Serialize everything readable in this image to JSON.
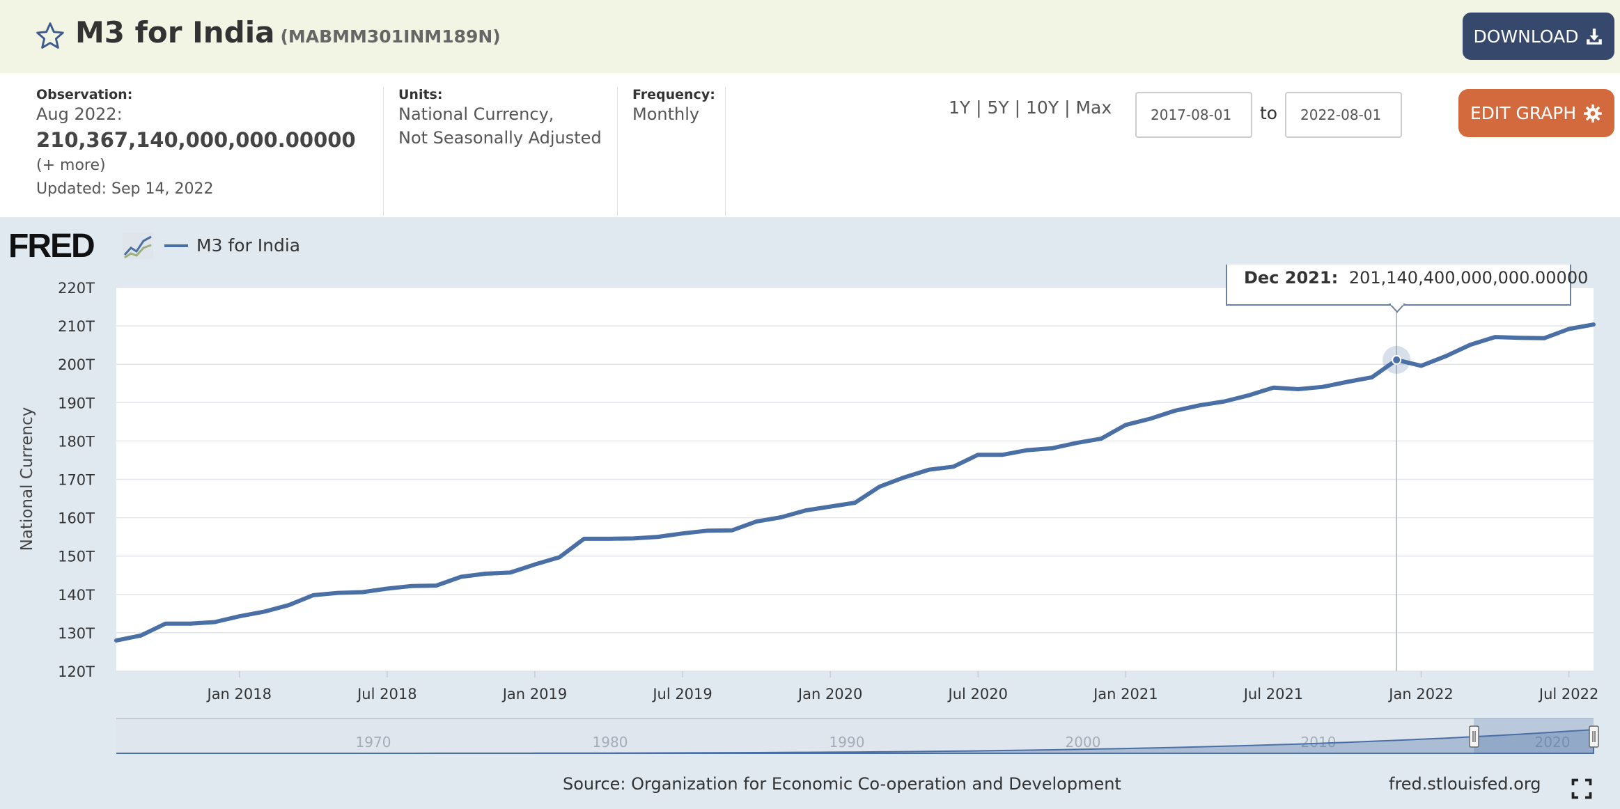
{
  "header": {
    "title": "M3 for India",
    "series_id": "(MABMM301INM189N)",
    "download_label": "DOWNLOAD"
  },
  "meta": {
    "observation_label": "Observation:",
    "observation_date": "Aug 2022:",
    "observation_value": "210,367,140,000,000.00000",
    "more_link": "(+ more)",
    "updated": "Updated: Sep 14, 2022",
    "units_label": "Units:",
    "units_line1": "National Currency,",
    "units_line2": "Not Seasonally Adjusted",
    "frequency_label": "Frequency:",
    "frequency_value": "Monthly"
  },
  "controls": {
    "range_1y": "1Y",
    "range_5y": "5Y",
    "range_10y": "10Y",
    "range_max": "Max",
    "date_from": "2017-08-01",
    "to_label": "to",
    "date_to": "2022-08-01",
    "edit_graph_label": "EDIT GRAPH"
  },
  "logo_text": "FRED",
  "tooltip": {
    "date": "Dec 2021:",
    "value": "201,140,400,000,000.00000"
  },
  "navigator": {
    "labels": [
      "1970",
      "1980",
      "1990",
      "2000",
      "2010",
      "2020"
    ]
  },
  "footer": {
    "source": "Source: Organization for Economic Co-operation and Development",
    "site": "fred.stlouisfed.org"
  },
  "colors": {
    "line": "#4a6fa5",
    "header_bg": "#f2f4e4",
    "download_bg": "#36496d",
    "edit_bg": "#d36a3e",
    "chart_bg": "#e1e9f0"
  },
  "chart_data": {
    "type": "line",
    "ylabel": "National Currency",
    "ylim": [
      120,
      220
    ],
    "y_ticks": [
      "120T",
      "130T",
      "140T",
      "150T",
      "160T",
      "170T",
      "180T",
      "190T",
      "200T",
      "210T",
      "220T"
    ],
    "x_ticks": [
      "Jan 2018",
      "Jul 2018",
      "Jan 2019",
      "Jul 2019",
      "Jan 2020",
      "Jul 2020",
      "Jan 2021",
      "Jul 2021",
      "Jan 2022",
      "Jul 2022"
    ],
    "x_range": [
      "2017-08",
      "2022-08"
    ],
    "grid": true,
    "legend": "top-left",
    "series": [
      {
        "name": "M3 for India",
        "x": [
          "2017-08",
          "2017-09",
          "2017-10",
          "2017-11",
          "2017-12",
          "2018-01",
          "2018-02",
          "2018-03",
          "2018-04",
          "2018-05",
          "2018-06",
          "2018-07",
          "2018-08",
          "2018-09",
          "2018-10",
          "2018-11",
          "2018-12",
          "2019-01",
          "2019-02",
          "2019-03",
          "2019-04",
          "2019-05",
          "2019-06",
          "2019-07",
          "2019-08",
          "2019-09",
          "2019-10",
          "2019-11",
          "2019-12",
          "2020-01",
          "2020-02",
          "2020-03",
          "2020-04",
          "2020-05",
          "2020-06",
          "2020-07",
          "2020-08",
          "2020-09",
          "2020-10",
          "2020-11",
          "2020-12",
          "2021-01",
          "2021-02",
          "2021-03",
          "2021-04",
          "2021-05",
          "2021-06",
          "2021-07",
          "2021-08",
          "2021-09",
          "2021-10",
          "2021-11",
          "2021-12",
          "2022-01",
          "2022-02",
          "2022-03",
          "2022-04",
          "2022-05",
          "2022-06",
          "2022-07",
          "2022-08"
        ],
        "values": [
          128.0,
          129.3,
          132.4,
          132.4,
          132.8,
          134.3,
          135.5,
          137.2,
          139.8,
          140.4,
          140.6,
          141.5,
          142.2,
          142.3,
          144.6,
          145.4,
          145.7,
          147.8,
          149.7,
          154.5,
          154.5,
          154.6,
          155.0,
          155.9,
          156.6,
          156.7,
          159.0,
          160.1,
          161.9,
          162.9,
          163.9,
          168.1,
          170.5,
          172.5,
          173.3,
          176.4,
          176.4,
          177.6,
          178.1,
          179.5,
          180.6,
          184.2,
          185.8,
          187.9,
          189.3,
          190.3,
          191.9,
          193.9,
          193.5,
          194.1,
          195.4,
          196.6,
          201.14,
          199.6,
          202.1,
          205.1,
          207.1,
          206.9,
          206.8,
          209.2,
          210.37
        ]
      }
    ]
  }
}
